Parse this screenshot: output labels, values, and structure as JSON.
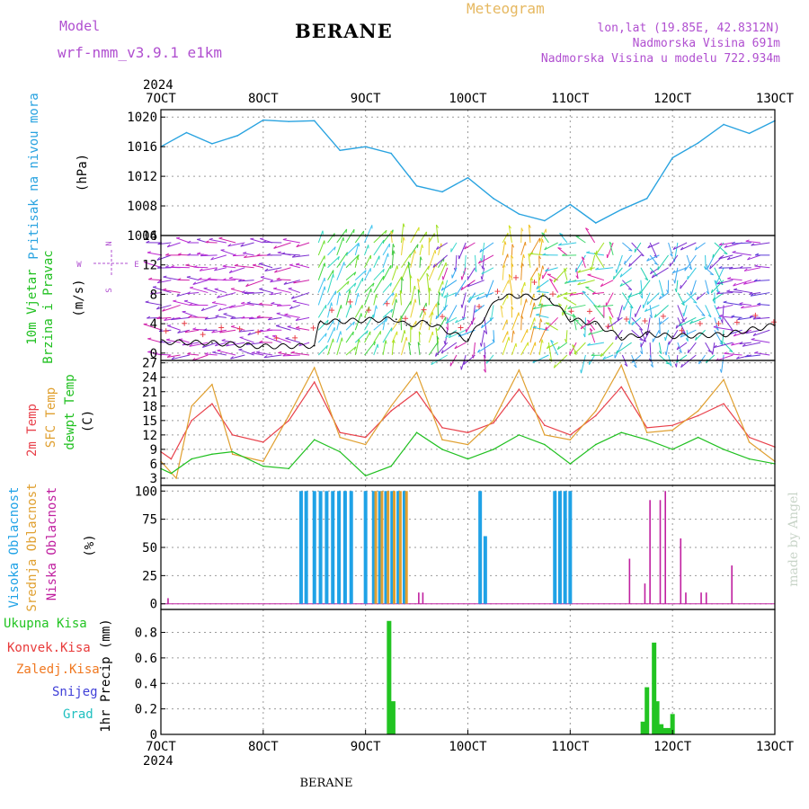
{
  "header": {
    "left_label": "Model",
    "model_name": "wrf-nmm_v3.9.1 e1km",
    "station": "BERANE",
    "meteogram": "Meteogram",
    "lonlat": "lon,lat (19.85E, 42.8312N)",
    "elevation": "Nadmorska Visina 691m",
    "model_elevation": "Nadmorska Visina u modelu 722.934m",
    "watermark": "made by Angel",
    "footer_station": "BERANE"
  },
  "colors": {
    "pressure": "#29a3e0",
    "wind_label": "#20c020",
    "temp2m": "#e8404a",
    "sfc": "#e0a030",
    "dew": "#20c020",
    "cloud_high": "#1fa2e6",
    "cloud_mid": "#e0a030",
    "cloud_low": "#c020a0",
    "precip_total": "#22c422",
    "precip_conv": "#e83a3a",
    "precip_frozen": "#f07820",
    "precip_snow": "#4040d8",
    "precip_grad": "#20c0c0",
    "compass": "#b04fd0"
  },
  "chart_data": [
    {
      "type": "line",
      "panel": "pressure",
      "ylabel": "Pritisak na nivou mora",
      "unit": "(hPa)",
      "ylim": [
        1004,
        1021
      ],
      "yticks": [
        1008,
        1012,
        1016,
        1020
      ],
      "clipped_tick": "1004",
      "grid": true,
      "x": [
        7.0,
        7.25,
        7.5,
        7.75,
        8.0,
        8.25,
        8.5,
        8.75,
        9.0,
        9.25,
        9.5,
        9.75,
        10.0,
        10.25,
        10.5,
        10.75,
        11.0,
        11.25,
        11.5,
        11.75,
        12.0,
        12.25,
        12.5,
        12.75,
        13.0
      ],
      "values": [
        1016.0,
        1017.9,
        1016.4,
        1017.5,
        1019.6,
        1019.4,
        1019.5,
        1015.5,
        1016.0,
        1015.1,
        1010.7,
        1009.9,
        1011.8,
        1009.0,
        1006.9,
        1006.0,
        1008.2,
        1005.7,
        1007.5,
        1009.0,
        1014.5,
        1016.5,
        1019.0,
        1017.8,
        1019.5
      ]
    },
    {
      "type": "vector",
      "panel": "wind",
      "ylabel": "10m Vjetar Brzina i Pravac",
      "unit": "(m/s)",
      "ylim": [
        -1,
        16
      ],
      "yticks": [
        0,
        4,
        8,
        12,
        16
      ],
      "grid": true,
      "compass": [
        "N",
        "E",
        "S",
        "W"
      ],
      "x": [
        7.0,
        7.5,
        8.0,
        8.5,
        8.55,
        9.0,
        9.3,
        9.4,
        9.6,
        10.0,
        10.3,
        10.5,
        10.8,
        11.0,
        11.25,
        11.5,
        11.75,
        12.0,
        12.5,
        13.0
      ],
      "speed": [
        1.5,
        1.4,
        0.9,
        1.0,
        4.2,
        4.5,
        4.6,
        3.8,
        4.2,
        1.8,
        7.6,
        7.8,
        7.4,
        4.6,
        4.0,
        2.1,
        2.6,
        2.3,
        2.5,
        3.8
      ]
    },
    {
      "type": "line",
      "panel": "temperature",
      "ylabel": [
        "2m Temp",
        "SFC Temp",
        "dewpt Temp"
      ],
      "unit": "(C)",
      "ylim": [
        1.5,
        27.5
      ],
      "yticks": [
        3,
        6,
        9,
        12,
        15,
        18,
        21,
        24,
        27
      ],
      "grid": true,
      "series": [
        {
          "name": "2m Temp",
          "x": [
            7.0,
            7.1,
            7.3,
            7.5,
            7.7,
            8.0,
            8.25,
            8.5,
            8.75,
            9.0,
            9.25,
            9.5,
            9.75,
            10.0,
            10.25,
            10.5,
            10.75,
            11.0,
            11.25,
            11.5,
            11.75,
            12.0,
            12.25,
            12.5,
            12.75,
            13.0
          ],
          "values": [
            8.5,
            7.0,
            15.0,
            18.5,
            12.0,
            10.5,
            15.0,
            23.0,
            12.5,
            11.5,
            17.0,
            21.0,
            13.5,
            12.5,
            14.5,
            21.5,
            14.0,
            12.0,
            16.0,
            22.0,
            13.5,
            14.0,
            16.0,
            18.5,
            11.5,
            9.5
          ]
        },
        {
          "name": "SFC Temp",
          "x": [
            7.0,
            7.15,
            7.3,
            7.5,
            7.7,
            8.0,
            8.25,
            8.5,
            8.75,
            9.0,
            9.25,
            9.5,
            9.75,
            10.0,
            10.25,
            10.5,
            10.75,
            11.0,
            11.25,
            11.5,
            11.75,
            12.0,
            12.25,
            12.5,
            12.75,
            13.0
          ],
          "values": [
            6.5,
            3.0,
            18.0,
            22.5,
            8.0,
            6.5,
            16.0,
            26.0,
            11.5,
            10.0,
            18.0,
            25.0,
            11.0,
            10.0,
            15.0,
            25.5,
            12.0,
            11.0,
            17.0,
            26.5,
            12.5,
            13.0,
            17.0,
            23.5,
            10.5,
            6.5
          ]
        },
        {
          "name": "dewpt Temp",
          "x": [
            7.0,
            7.1,
            7.3,
            7.5,
            7.7,
            8.0,
            8.25,
            8.5,
            8.75,
            9.0,
            9.25,
            9.5,
            9.75,
            10.0,
            10.25,
            10.5,
            10.75,
            11.0,
            11.25,
            11.5,
            11.75,
            12.0,
            12.25,
            12.5,
            12.75,
            13.0
          ],
          "values": [
            5.0,
            4.0,
            7.0,
            8.0,
            8.5,
            5.5,
            5.0,
            11.0,
            8.5,
            3.5,
            5.5,
            12.5,
            9.0,
            7.0,
            9.0,
            12.0,
            10.0,
            6.0,
            10.0,
            12.5,
            11.0,
            9.0,
            11.5,
            9.0,
            7.0,
            6.0
          ]
        }
      ]
    },
    {
      "type": "bar",
      "panel": "clouds",
      "ylabel": [
        "Visoka Oblacnost",
        "Srednja Oblacnost",
        "Niska Oblacnost"
      ],
      "unit": "(%)",
      "ylim": [
        -5,
        105
      ],
      "yticks": [
        0,
        25,
        50,
        75,
        100
      ],
      "grid": true,
      "series": [
        {
          "name": "Visoka Oblacnost",
          "x": [
            8.37,
            8.42,
            8.5,
            8.56,
            8.62,
            8.68,
            8.74,
            8.8,
            8.86,
            9.0,
            9.08,
            9.14,
            9.2,
            9.26,
            9.32,
            9.38,
            10.12,
            10.17,
            10.85,
            10.9,
            10.95,
            11.0
          ],
          "values": [
            100,
            100,
            100,
            100,
            100,
            100,
            100,
            100,
            100,
            100,
            100,
            100,
            100,
            100,
            100,
            100,
            100,
            60,
            100,
            100,
            100,
            100
          ]
        },
        {
          "name": "Srednja Oblacnost",
          "x": [
            9.1,
            9.16,
            9.22,
            9.28,
            9.34,
            9.4
          ],
          "values": [
            100,
            100,
            100,
            100,
            100,
            100
          ]
        },
        {
          "name": "Niska Oblacnost",
          "x": [
            7.07,
            9.52,
            9.56,
            11.58,
            11.73,
            11.78,
            11.88,
            11.93,
            12.08,
            12.13,
            12.28,
            12.33,
            12.58
          ],
          "values": [
            5,
            10,
            10,
            40,
            18,
            92,
            92,
            100,
            58,
            10,
            10,
            10,
            34
          ]
        }
      ]
    },
    {
      "type": "bar",
      "panel": "precip",
      "ylabel": "1hr Precip (mm)",
      "ylim": [
        0,
        0.98
      ],
      "yticks": [
        0,
        0.2,
        0.4,
        0.6,
        0.8
      ],
      "grid": true,
      "legend": [
        "Ukupna Kisa",
        "Konvek.Kisa",
        "Zaledj.Kisa",
        "Snijeg",
        "Grad"
      ],
      "series": [
        {
          "name": "Ukupna Kisa",
          "x": [
            9.23,
            9.27,
            11.71,
            11.75,
            11.82,
            11.85,
            11.89,
            11.93,
            11.97,
            12.0
          ],
          "values": [
            0.89,
            0.26,
            0.1,
            0.37,
            0.72,
            0.26,
            0.08,
            0.05,
            0.05,
            0.16
          ]
        }
      ]
    }
  ],
  "x_axis": {
    "year_label": "2024",
    "ticks": [
      {
        "pos": 7,
        "label": "7OCT"
      },
      {
        "pos": 8,
        "label": "8OCT"
      },
      {
        "pos": 9,
        "label": "9OCT"
      },
      {
        "pos": 10,
        "label": "10OCT"
      },
      {
        "pos": 11,
        "label": "11OCT"
      },
      {
        "pos": 12,
        "label": "12OCT"
      },
      {
        "pos": 13,
        "label": "13OCT"
      }
    ]
  }
}
